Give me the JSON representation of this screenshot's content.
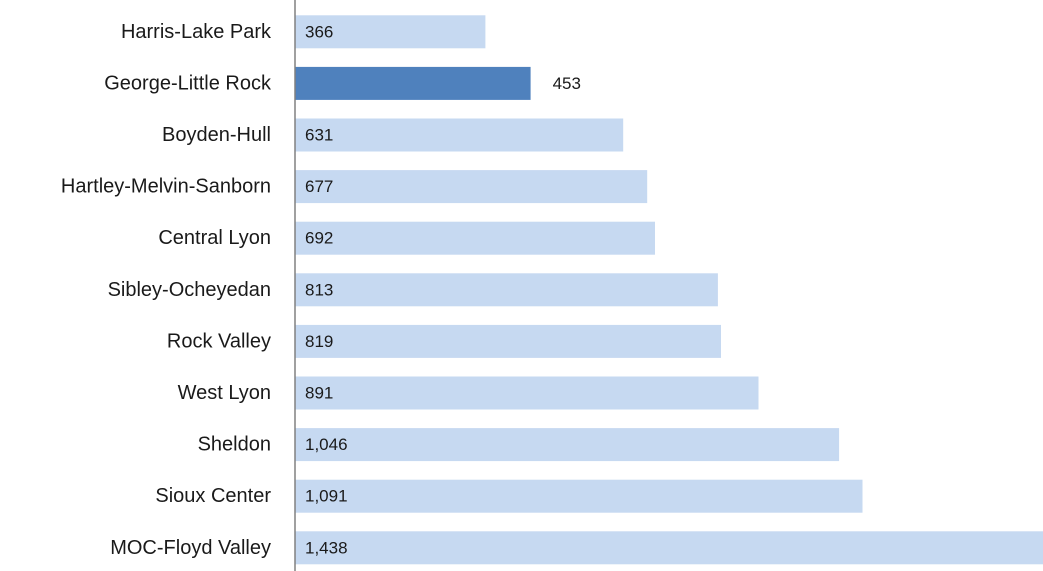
{
  "chart_data": {
    "type": "bar",
    "orientation": "horizontal",
    "categories": [
      "Harris-Lake Park",
      "George-Little Rock",
      "Boyden-Hull",
      "Hartley-Melvin-Sanborn",
      "Central Lyon",
      "Sibley-Ocheyedan",
      "Rock Valley",
      "West Lyon",
      "Sheldon",
      "Sioux Center",
      "MOC-Floyd Valley"
    ],
    "values": [
      366,
      453,
      631,
      677,
      692,
      813,
      819,
      891,
      1046,
      1091,
      1438
    ],
    "value_labels": [
      "366",
      "453",
      "631",
      "677",
      "692",
      "813",
      "819",
      "891",
      "1,046",
      "1,091",
      "1,438"
    ],
    "highlight_index": 1,
    "label_position": {
      "inside_start": [
        0,
        2,
        3,
        4,
        5,
        6,
        7,
        8,
        9,
        10
      ],
      "outside_end": [
        1
      ]
    },
    "xlim": [
      0,
      1438
    ],
    "grid": false,
    "legend": "none",
    "title": "",
    "xlabel": "",
    "ylabel": "",
    "colors": {
      "bar": "#c6d9f1",
      "highlight": "#4f81bd",
      "axis": "#808080",
      "text": "#1a1a1a"
    }
  }
}
